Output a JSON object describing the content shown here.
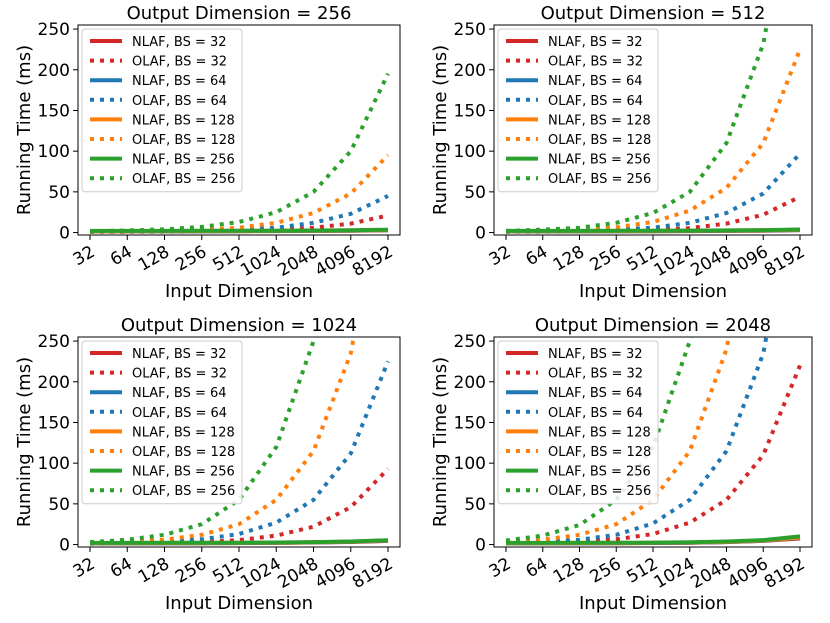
{
  "figure": {
    "background": "#ffffff"
  },
  "chart_data": [
    {
      "type": "line",
      "title": "Output Dimension = 256",
      "xlabel": "Input Dimension",
      "ylabel": "Running Time (ms)",
      "categories": [
        "32",
        "64",
        "128",
        "256",
        "512",
        "1024",
        "2048",
        "4096",
        "8192"
      ],
      "ylim": [
        -3,
        255
      ],
      "yticks": [
        0,
        50,
        100,
        150,
        200,
        250
      ],
      "legend": "top-left",
      "series": [
        {
          "name": "NLAF, BS = 32",
          "style": "solid",
          "color": "#d62728",
          "values": [
            1.5,
            1.5,
            1.5,
            1.6,
            1.7,
            1.8,
            2.0,
            2.3,
            2.8
          ]
        },
        {
          "name": "OLAF, BS = 32",
          "style": "dotted",
          "color": "#d62728",
          "values": [
            1.0,
            1.0,
            1.2,
            1.5,
            2.2,
            3.5,
            6,
            11,
            21
          ]
        },
        {
          "name": "NLAF, BS = 64",
          "style": "solid",
          "color": "#1f77b4",
          "values": [
            1.6,
            1.6,
            1.6,
            1.7,
            1.8,
            1.9,
            2.1,
            2.4,
            3.0
          ]
        },
        {
          "name": "OLAF, BS = 64",
          "style": "dotted",
          "color": "#1f77b4",
          "values": [
            1.0,
            1.2,
            1.5,
            2.2,
            3.5,
            6,
            12,
            23,
            45
          ]
        },
        {
          "name": "NLAF, BS = 128",
          "style": "solid",
          "color": "#ff7f0e",
          "values": [
            1.8,
            1.8,
            1.8,
            1.9,
            2.0,
            2.1,
            2.3,
            2.6,
            3.2
          ]
        },
        {
          "name": "OLAF, BS = 128",
          "style": "dotted",
          "color": "#ff7f0e",
          "values": [
            1.2,
            1.5,
            2.3,
            3.5,
            6,
            12,
            24,
            48,
            95
          ]
        },
        {
          "name": "NLAF, BS = 256",
          "style": "solid",
          "color": "#2ca02c",
          "values": [
            2.0,
            2.0,
            2.0,
            2.1,
            2.2,
            2.3,
            2.5,
            2.8,
            3.5
          ]
        },
        {
          "name": "OLAF, BS = 256",
          "style": "dotted",
          "color": "#2ca02c",
          "values": [
            1.5,
            2.5,
            4,
            7,
            13,
            25,
            50,
            100,
            195
          ]
        }
      ]
    },
    {
      "type": "line",
      "title": "Output Dimension = 512",
      "xlabel": "Input Dimension",
      "ylabel": "Running Time (ms)",
      "categories": [
        "32",
        "64",
        "128",
        "256",
        "512",
        "1024",
        "2048",
        "4096",
        "8192"
      ],
      "ylim": [
        -3,
        255
      ],
      "yticks": [
        0,
        50,
        100,
        150,
        200,
        250
      ],
      "legend": "top-left",
      "series": [
        {
          "name": "NLAF, BS = 32",
          "style": "solid",
          "color": "#d62728",
          "values": [
            1.5,
            1.5,
            1.5,
            1.6,
            1.7,
            1.8,
            2.0,
            2.3,
            3.0
          ]
        },
        {
          "name": "OLAF, BS = 32",
          "style": "dotted",
          "color": "#d62728",
          "values": [
            1.0,
            1.2,
            1.5,
            2.0,
            3.0,
            5.5,
            11,
            22,
            44
          ]
        },
        {
          "name": "NLAF, BS = 64",
          "style": "solid",
          "color": "#1f77b4",
          "values": [
            1.6,
            1.6,
            1.6,
            1.7,
            1.8,
            1.9,
            2.1,
            2.5,
            3.2
          ]
        },
        {
          "name": "OLAF, BS = 64",
          "style": "dotted",
          "color": "#1f77b4",
          "values": [
            1.2,
            1.5,
            2.2,
            3.5,
            6,
            12,
            24,
            48,
            97
          ]
        },
        {
          "name": "NLAF, BS = 128",
          "style": "solid",
          "color": "#ff7f0e",
          "values": [
            1.8,
            1.8,
            1.8,
            1.9,
            2.0,
            2.2,
            2.4,
            2.8,
            3.5
          ]
        },
        {
          "name": "OLAF, BS = 128",
          "style": "dotted",
          "color": "#ff7f0e",
          "values": [
            1.5,
            2.3,
            3.5,
            6.5,
            13,
            27,
            55,
            110,
            225
          ]
        },
        {
          "name": "NLAF, BS = 256",
          "style": "solid",
          "color": "#2ca02c",
          "values": [
            2.0,
            2.0,
            2.0,
            2.1,
            2.2,
            2.4,
            2.7,
            3.0,
            3.8
          ]
        },
        {
          "name": "OLAF, BS = 256",
          "style": "dotted",
          "color": "#2ca02c",
          "values": [
            2.0,
            3.5,
            6,
            12,
            24,
            50,
            110,
            232,
            null
          ]
        }
      ]
    },
    {
      "type": "line",
      "title": "Output Dimension = 1024",
      "xlabel": "Input Dimension",
      "ylabel": "Running Time (ms)",
      "categories": [
        "32",
        "64",
        "128",
        "256",
        "512",
        "1024",
        "2048",
        "4096",
        "8192"
      ],
      "ylim": [
        -3,
        255
      ],
      "yticks": [
        0,
        50,
        100,
        150,
        200,
        250
      ],
      "legend": "top-left",
      "series": [
        {
          "name": "NLAF, BS = 32",
          "style": "solid",
          "color": "#d62728",
          "values": [
            1.5,
            1.5,
            1.6,
            1.7,
            1.8,
            2.0,
            2.5,
            3.2,
            4.5
          ]
        },
        {
          "name": "OLAF, BS = 32",
          "style": "dotted",
          "color": "#d62728",
          "values": [
            1.2,
            1.5,
            2.0,
            3.0,
            5.5,
            11,
            22,
            46,
            93
          ]
        },
        {
          "name": "NLAF, BS = 64",
          "style": "solid",
          "color": "#1f77b4",
          "values": [
            1.6,
            1.6,
            1.7,
            1.8,
            1.9,
            2.1,
            2.6,
            3.4,
            4.8
          ]
        },
        {
          "name": "OLAF, BS = 64",
          "style": "dotted",
          "color": "#1f77b4",
          "values": [
            1.5,
            2.2,
            3.5,
            6.5,
            13,
            27,
            55,
            112,
            225
          ]
        },
        {
          "name": "NLAF, BS = 128",
          "style": "solid",
          "color": "#ff7f0e",
          "values": [
            1.8,
            1.8,
            1.9,
            2.0,
            2.1,
            2.3,
            2.8,
            3.6,
            5.0
          ]
        },
        {
          "name": "OLAF, BS = 128",
          "style": "dotted",
          "color": "#ff7f0e",
          "values": [
            2.0,
            3.5,
            6,
            12,
            25,
            55,
            115,
            235,
            null
          ]
        },
        {
          "name": "NLAF, BS = 256",
          "style": "solid",
          "color": "#2ca02c",
          "values": [
            2.0,
            2.0,
            2.1,
            2.2,
            2.3,
            2.5,
            3.0,
            3.8,
            5.3
          ]
        },
        {
          "name": "OLAF, BS = 256",
          "style": "dotted",
          "color": "#2ca02c",
          "values": [
            3.0,
            6,
            12,
            25,
            55,
            120,
            250,
            null,
            null
          ]
        }
      ]
    },
    {
      "type": "line",
      "title": "Output Dimension = 2048",
      "xlabel": "Input Dimension",
      "ylabel": "Running Time (ms)",
      "categories": [
        "32",
        "64",
        "128",
        "256",
        "512",
        "1024",
        "2048",
        "4096",
        "8192"
      ],
      "ylim": [
        -3,
        255
      ],
      "yticks": [
        0,
        50,
        100,
        150,
        200,
        250
      ],
      "legend": "top-left",
      "series": [
        {
          "name": "NLAF, BS = 32",
          "style": "solid",
          "color": "#d62728",
          "values": [
            1.5,
            1.5,
            1.6,
            1.7,
            1.9,
            2.2,
            3.0,
            4.5,
            7.5
          ]
        },
        {
          "name": "OLAF, BS = 32",
          "style": "dotted",
          "color": "#d62728",
          "values": [
            1.5,
            2.2,
            3.5,
            6.5,
            13,
            27,
            55,
            110,
            220
          ]
        },
        {
          "name": "NLAF, BS = 64",
          "style": "solid",
          "color": "#1f77b4",
          "values": [
            1.6,
            1.6,
            1.7,
            1.8,
            2.0,
            2.3,
            3.1,
            4.7,
            8.0
          ]
        },
        {
          "name": "OLAF, BS = 64",
          "style": "dotted",
          "color": "#1f77b4",
          "values": [
            2.0,
            3.5,
            6,
            12,
            26,
            55,
            115,
            235,
            null
          ]
        },
        {
          "name": "NLAF, BS = 128",
          "style": "solid",
          "color": "#ff7f0e",
          "values": [
            1.8,
            1.8,
            1.9,
            2.0,
            2.2,
            2.5,
            3.3,
            5.0,
            8.5
          ]
        },
        {
          "name": "OLAF, BS = 128",
          "style": "dotted",
          "color": "#ff7f0e",
          "values": [
            3.0,
            6,
            12,
            25,
            55,
            115,
            240,
            null,
            null
          ]
        },
        {
          "name": "NLAF, BS = 256",
          "style": "solid",
          "color": "#2ca02c",
          "values": [
            2.0,
            2.0,
            2.1,
            2.2,
            2.4,
            2.8,
            3.8,
            5.5,
            10
          ]
        },
        {
          "name": "OLAF, BS = 256",
          "style": "dotted",
          "color": "#2ca02c",
          "values": [
            5,
            11,
            24,
            55,
            120,
            250,
            null,
            null,
            null
          ]
        }
      ]
    }
  ]
}
